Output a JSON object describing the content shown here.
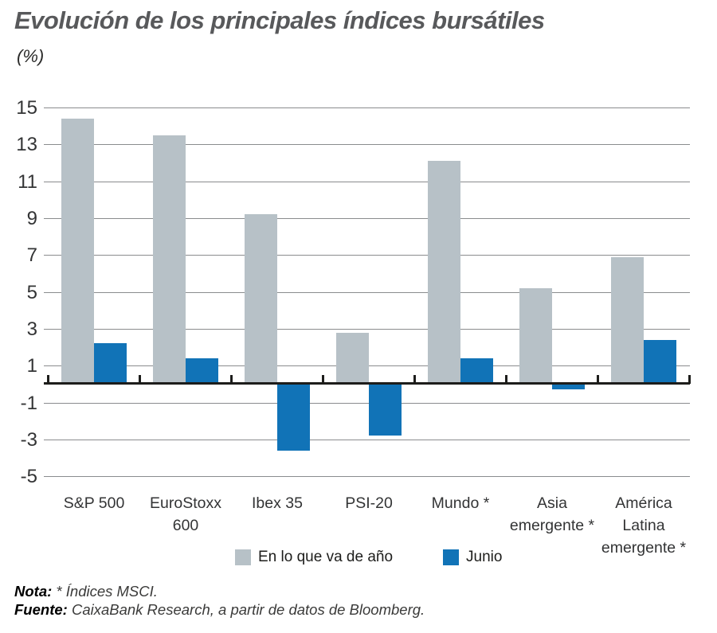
{
  "header": {
    "title": "Evolución de los principales índices bursátiles",
    "subtitle": "(%)"
  },
  "chart_data": {
    "type": "bar",
    "title": "Evolución de los principales índices bursátiles",
    "ylabel": "(%)",
    "categories": [
      "S&P 500",
      "EuroStoxx 600",
      "Ibex 35",
      "PSI-20",
      "Mundo *",
      "Asia emergente *",
      "América Latina emergente *"
    ],
    "categories_wrapped": [
      [
        "S&P 500"
      ],
      [
        "EuroStoxx",
        "600"
      ],
      [
        "Ibex 35"
      ],
      [
        "PSI-20"
      ],
      [
        "Mundo *"
      ],
      [
        "Asia",
        "emergente *"
      ],
      [
        "América",
        "Latina",
        "emergente *"
      ]
    ],
    "series": [
      {
        "name": "En lo que va de año",
        "color": "#b7c1c7",
        "values": [
          14.4,
          13.5,
          9.2,
          2.8,
          12.1,
          5.2,
          6.9
        ]
      },
      {
        "name": "Junio",
        "color": "#1173b7",
        "values": [
          2.2,
          1.4,
          -3.6,
          -2.8,
          1.4,
          -0.3,
          2.4
        ]
      }
    ],
    "ylim": [
      -5,
      15
    ],
    "yticks": [
      15,
      13,
      11,
      9,
      7,
      5,
      3,
      1,
      -1,
      -3,
      -5
    ],
    "grid": true,
    "legend_position": "bottom"
  },
  "legend": {
    "item1": "En lo que va de año",
    "item2": "Junio"
  },
  "notes": {
    "nota_label": "Nota:",
    "nota_text": " * Índices MSCI.",
    "fuente_label": "Fuente:",
    "fuente_text": " CaixaBank Research, a partir de datos de Bloomberg."
  }
}
